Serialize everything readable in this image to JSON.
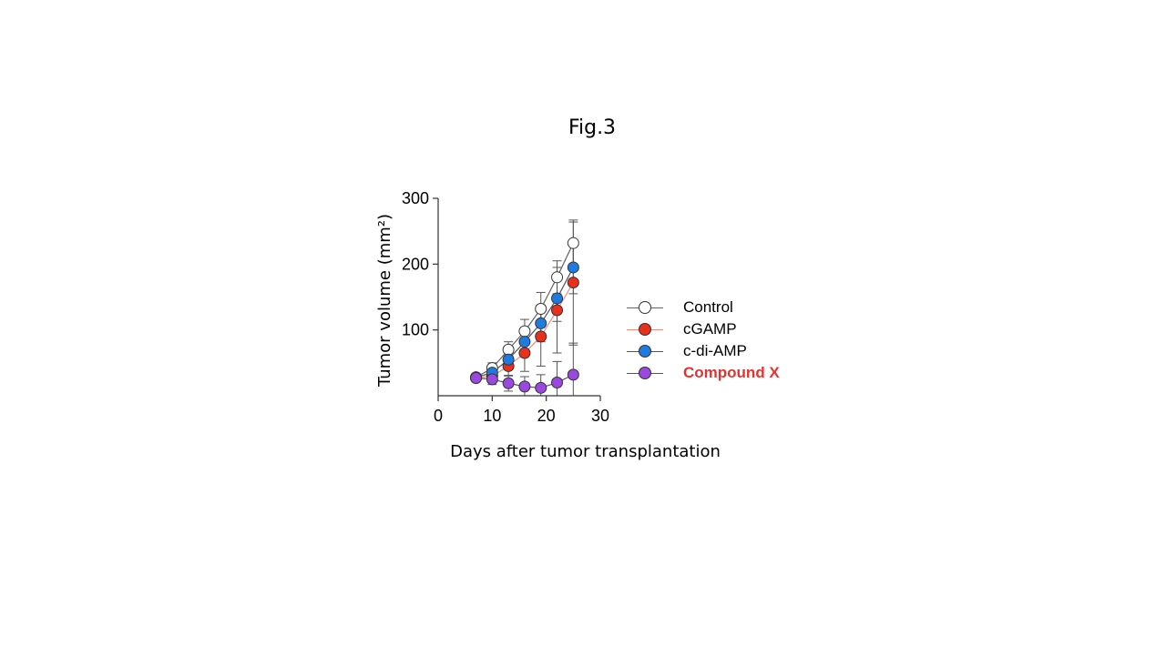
{
  "figure_title": "Fig.3",
  "xlabel": "Days after tumor transplantation",
  "chart_data": {
    "type": "line",
    "title": "",
    "xlabel": "Days after tumor transplantation",
    "ylabel": "Tumor volume (mm²)",
    "xlim": [
      0,
      30
    ],
    "ylim": [
      0,
      300
    ],
    "x_ticks": [
      "0",
      "10",
      "20",
      "30"
    ],
    "y_ticks": [
      "100",
      "200",
      "300"
    ],
    "x_tick_values": [
      0,
      10,
      20,
      30
    ],
    "y_tick_values": [
      100,
      200,
      300
    ],
    "grid": false,
    "legend_position": "right",
    "series": [
      {
        "name": "Control",
        "color": "#ffffff",
        "line_color": "#666666",
        "x": [
          7,
          10,
          13,
          16,
          19,
          22,
          25
        ],
        "y": [
          28,
          42,
          70,
          98,
          132,
          180,
          232
        ],
        "error": [
          5,
          8,
          12,
          18,
          25,
          25,
          32
        ]
      },
      {
        "name": "cGAMP",
        "color": "#e8301c",
        "line_color": "#f08a7a",
        "x": [
          7,
          10,
          13,
          16,
          19,
          22,
          25
        ],
        "y": [
          27,
          30,
          45,
          65,
          90,
          130,
          172
        ],
        "error": [
          4,
          6,
          15,
          28,
          45,
          65,
          95
        ]
      },
      {
        "name": "c-di-AMP",
        "color": "#1f7be0",
        "line_color": "#555555",
        "x": [
          7,
          10,
          13,
          16,
          19,
          22,
          25
        ],
        "y": [
          28,
          35,
          55,
          82,
          110,
          148,
          195
        ],
        "error": [
          4,
          7,
          15,
          20,
          28,
          35,
          40
        ]
      },
      {
        "name": "Compound X",
        "color": "#9a48e0",
        "line_color": "#555555",
        "x": [
          7,
          10,
          13,
          16,
          19,
          22,
          25
        ],
        "y": [
          27,
          25,
          19,
          14,
          12,
          20,
          32
        ],
        "error": [
          3,
          8,
          12,
          15,
          20,
          32,
          48
        ],
        "highlight": true
      }
    ]
  }
}
